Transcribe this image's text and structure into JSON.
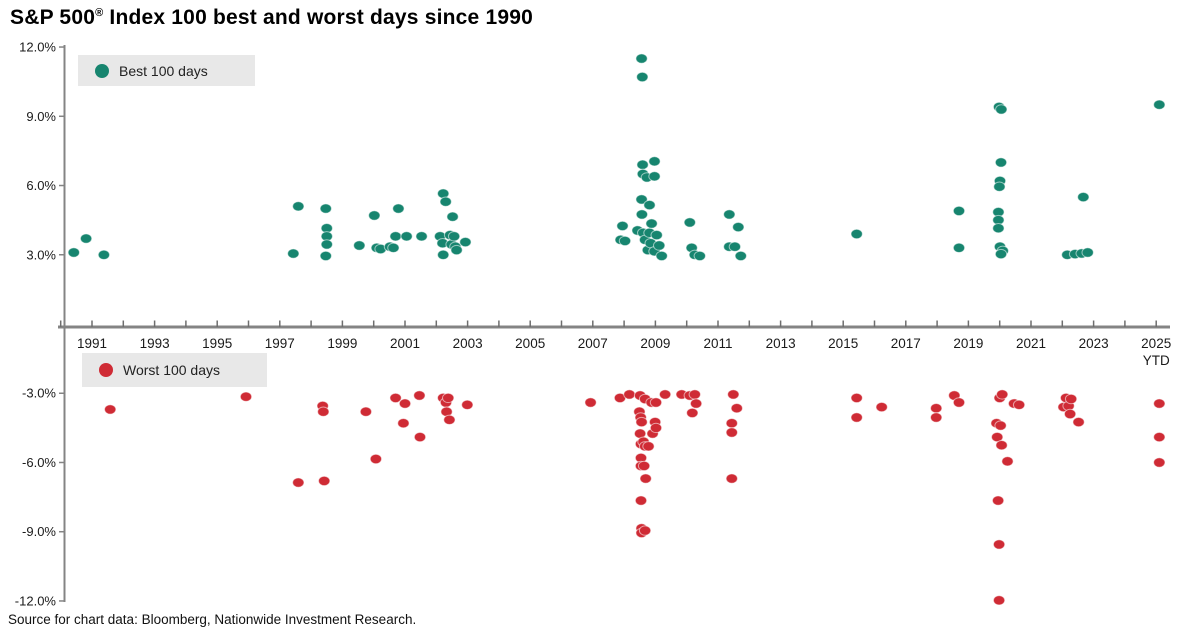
{
  "title": {
    "prefix": "S&P 500",
    "reg": "®",
    "rest": " Index 100 best and worst days since 1990"
  },
  "legend": {
    "best": "Best 100 days",
    "worst": "Worst 100 days"
  },
  "source": "Source for chart data: Bloomberg, Nationwide Investment Research.",
  "colors": {
    "best": "#17856F",
    "worst": "#CF2B35",
    "axis": "#848484",
    "legend_bg": "#E8E8E8",
    "text": "#1A1A1A"
  },
  "chart_data": {
    "type": "scatter",
    "title": "S&P 500 Index 100 best and worst days since 1990",
    "x_axis": {
      "year_range": [
        1990,
        2025
      ],
      "tick_interval_years": 1,
      "label_years": [
        1991,
        1993,
        1995,
        1997,
        1999,
        2001,
        2003,
        2005,
        2007,
        2009,
        2011,
        2013,
        2015,
        2017,
        2019,
        2021,
        2023,
        2025
      ],
      "last_label_suffix": "YTD"
    },
    "y_axis": {
      "unit": "% daily return",
      "range": [
        -12.5,
        12.5
      ],
      "zero_line_is_x_axis": true,
      "ticks": [
        {
          "value": 12,
          "label": "12.0%"
        },
        {
          "value": 9,
          "label": "9.0%"
        },
        {
          "value": 6,
          "label": "6.0%"
        },
        {
          "value": 3,
          "label": "3.0%"
        },
        {
          "value": -3,
          "label": "-3.0%"
        },
        {
          "value": -6,
          "label": "-6.0%"
        },
        {
          "value": -9,
          "label": "-9.0%"
        },
        {
          "value": -12,
          "label": "-12.0%"
        }
      ]
    },
    "legend_position": "inside-top-left-and-below-axis",
    "grid": false,
    "series": [
      {
        "name": "Best 100 days",
        "color": "#17856F",
        "points": [
          [
            1990.42,
            3.1
          ],
          [
            1990.81,
            3.7
          ],
          [
            1991.38,
            3.0
          ],
          [
            1997.43,
            3.05
          ],
          [
            1997.59,
            5.1
          ],
          [
            1998.47,
            5.0
          ],
          [
            1998.5,
            4.15
          ],
          [
            1998.5,
            3.8
          ],
          [
            1998.5,
            3.45
          ],
          [
            1998.47,
            2.95
          ],
          [
            1999.54,
            3.4
          ],
          [
            2000.02,
            4.7
          ],
          [
            2000.1,
            3.3
          ],
          [
            2000.22,
            3.25
          ],
          [
            2000.52,
            3.35
          ],
          [
            2000.63,
            3.3
          ],
          [
            2000.7,
            3.8
          ],
          [
            2000.79,
            5.0
          ],
          [
            2001.05,
            3.8
          ],
          [
            2001.53,
            3.8
          ],
          [
            2002.12,
            3.8
          ],
          [
            2002.2,
            3.5
          ],
          [
            2002.22,
            5.65
          ],
          [
            2002.22,
            3.0
          ],
          [
            2002.3,
            5.3
          ],
          [
            2002.44,
            3.85
          ],
          [
            2002.49,
            3.45
          ],
          [
            2002.52,
            4.65
          ],
          [
            2002.57,
            3.8
          ],
          [
            2002.61,
            3.35
          ],
          [
            2002.65,
            3.2
          ],
          [
            2002.93,
            3.55
          ],
          [
            2007.89,
            3.65
          ],
          [
            2007.95,
            4.25
          ],
          [
            2008.03,
            3.6
          ],
          [
            2008.43,
            4.05
          ],
          [
            2008.56,
            11.5
          ],
          [
            2008.58,
            10.7
          ],
          [
            2008.59,
            6.9
          ],
          [
            2008.56,
            5.4
          ],
          [
            2008.57,
            4.75
          ],
          [
            2008.6,
            6.5
          ],
          [
            2008.61,
            3.95
          ],
          [
            2008.67,
            3.65
          ],
          [
            2008.73,
            6.35
          ],
          [
            2008.76,
            3.2
          ],
          [
            2008.81,
            5.15
          ],
          [
            2008.81,
            3.95
          ],
          [
            2008.85,
            3.5
          ],
          [
            2008.88,
            4.35
          ],
          [
            2008.97,
            7.05
          ],
          [
            2008.97,
            6.4
          ],
          [
            2008.97,
            3.15
          ],
          [
            2009.04,
            3.85
          ],
          [
            2009.12,
            3.4
          ],
          [
            2009.2,
            2.95
          ],
          [
            2010.1,
            4.4
          ],
          [
            2010.16,
            3.3
          ],
          [
            2010.26,
            3.0
          ],
          [
            2010.42,
            2.95
          ],
          [
            2011.36,
            4.75
          ],
          [
            2011.36,
            3.35
          ],
          [
            2011.54,
            3.35
          ],
          [
            2011.65,
            4.2
          ],
          [
            2011.73,
            2.95
          ],
          [
            2015.43,
            3.9
          ],
          [
            2018.7,
            4.9
          ],
          [
            2018.7,
            3.3
          ],
          [
            2019.98,
            9.4
          ],
          [
            2020.05,
            9.3
          ],
          [
            2020.04,
            7.0
          ],
          [
            2020.01,
            6.2
          ],
          [
            2019.99,
            5.95
          ],
          [
            2019.96,
            4.85
          ],
          [
            2019.96,
            4.5
          ],
          [
            2019.96,
            4.15
          ],
          [
            2020.01,
            3.35
          ],
          [
            2020.1,
            3.17
          ],
          [
            2020.04,
            3.03
          ],
          [
            2022.16,
            3.0
          ],
          [
            2022.41,
            3.03
          ],
          [
            2022.62,
            3.06
          ],
          [
            2022.67,
            5.5
          ],
          [
            2022.81,
            3.1
          ],
          [
            2025.1,
            9.5
          ]
        ]
      },
      {
        "name": "Worst 100 days",
        "color": "#CF2B35",
        "points": [
          [
            1991.58,
            -3.7
          ],
          [
            1995.92,
            -3.15
          ],
          [
            1997.59,
            -6.87
          ],
          [
            1998.37,
            -3.55
          ],
          [
            1998.39,
            -3.8
          ],
          [
            1998.42,
            -6.8
          ],
          [
            1999.75,
            -3.8
          ],
          [
            2000.07,
            -5.85
          ],
          [
            2000.7,
            -3.2
          ],
          [
            2000.95,
            -4.3
          ],
          [
            2001.0,
            -3.45
          ],
          [
            2001.46,
            -3.1
          ],
          [
            2001.48,
            -4.9
          ],
          [
            2002.22,
            -3.2
          ],
          [
            2002.31,
            -3.4
          ],
          [
            2002.33,
            -3.8
          ],
          [
            2002.38,
            -3.2
          ],
          [
            2002.42,
            -4.15
          ],
          [
            2002.99,
            -3.5
          ],
          [
            2006.93,
            -3.4
          ],
          [
            2007.87,
            -3.2
          ],
          [
            2008.17,
            -3.05
          ],
          [
            2008.49,
            -3.8
          ],
          [
            2008.51,
            -3.1
          ],
          [
            2008.51,
            -4.75
          ],
          [
            2008.53,
            -4.05
          ],
          [
            2008.54,
            -5.2
          ],
          [
            2008.54,
            -5.8
          ],
          [
            2008.54,
            -6.15
          ],
          [
            2008.54,
            -7.65
          ],
          [
            2008.56,
            -4.25
          ],
          [
            2008.56,
            -8.85
          ],
          [
            2008.56,
            -9.05
          ],
          [
            2008.62,
            -5.1
          ],
          [
            2008.64,
            -6.15
          ],
          [
            2008.67,
            -3.25
          ],
          [
            2008.67,
            -5.3
          ],
          [
            2008.67,
            -8.95
          ],
          [
            2008.69,
            -6.7
          ],
          [
            2008.78,
            -5.3
          ],
          [
            2008.88,
            -3.4
          ],
          [
            2008.91,
            -4.75
          ],
          [
            2008.99,
            -4.25
          ],
          [
            2009.02,
            -3.4
          ],
          [
            2009.02,
            -4.5
          ],
          [
            2009.31,
            -3.05
          ],
          [
            2009.84,
            -3.05
          ],
          [
            2010.1,
            -3.1
          ],
          [
            2010.18,
            -3.85
          ],
          [
            2010.26,
            -3.05
          ],
          [
            2010.3,
            -3.45
          ],
          [
            2011.44,
            -4.3
          ],
          [
            2011.44,
            -4.7
          ],
          [
            2011.44,
            -6.7
          ],
          [
            2011.49,
            -3.05
          ],
          [
            2011.6,
            -3.65
          ],
          [
            2015.43,
            -3.2
          ],
          [
            2015.43,
            -4.05
          ],
          [
            2016.23,
            -3.6
          ],
          [
            2017.97,
            -3.65
          ],
          [
            2017.97,
            -4.05
          ],
          [
            2018.55,
            -3.1
          ],
          [
            2018.7,
            -3.4
          ],
          [
            2019.9,
            -4.3
          ],
          [
            2019.92,
            -4.9
          ],
          [
            2019.95,
            -7.65
          ],
          [
            2019.98,
            -9.55
          ],
          [
            2019.98,
            -11.97
          ],
          [
            2020.0,
            -3.2
          ],
          [
            2020.03,
            -4.4
          ],
          [
            2020.06,
            -5.25
          ],
          [
            2020.08,
            -3.05
          ],
          [
            2020.25,
            -5.95
          ],
          [
            2020.46,
            -3.45
          ],
          [
            2020.62,
            -3.5
          ],
          [
            2022.04,
            -3.6
          ],
          [
            2022.12,
            -3.2
          ],
          [
            2022.2,
            -3.55
          ],
          [
            2022.25,
            -3.9
          ],
          [
            2022.28,
            -3.25
          ],
          [
            2022.52,
            -4.25
          ],
          [
            2025.1,
            -3.45
          ],
          [
            2025.1,
            -4.9
          ],
          [
            2025.1,
            -6.0
          ]
        ]
      }
    ]
  }
}
